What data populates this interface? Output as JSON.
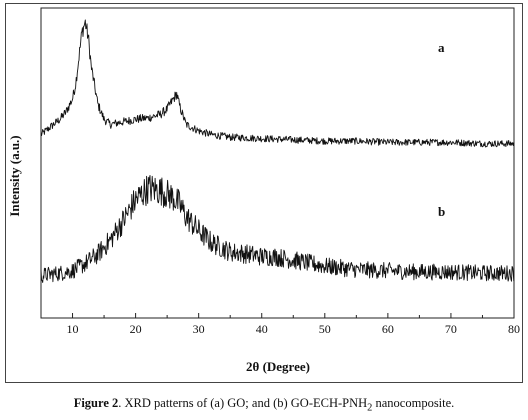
{
  "chart_data": {
    "type": "line",
    "xlabel": "2θ (Degree)",
    "ylabel": "Intensity (a.u.)",
    "xlim": [
      5,
      80
    ],
    "x_ticks": [
      10,
      20,
      30,
      40,
      50,
      60,
      70,
      80
    ],
    "grid": false,
    "panels": [
      {
        "label": "a",
        "x": [
          5,
          7,
          8,
          9,
          10,
          10.5,
          11,
          11.5,
          12,
          12.5,
          13,
          14,
          15,
          16,
          18,
          20,
          22,
          24,
          25,
          26,
          26.5,
          27,
          28,
          30,
          32,
          35,
          40,
          45,
          50,
          55,
          60,
          65,
          70,
          75,
          80
        ],
        "y": [
          0.12,
          0.2,
          0.24,
          0.3,
          0.4,
          0.52,
          0.72,
          0.92,
          1.0,
          0.88,
          0.64,
          0.36,
          0.24,
          0.2,
          0.22,
          0.24,
          0.25,
          0.28,
          0.32,
          0.4,
          0.44,
          0.34,
          0.2,
          0.15,
          0.12,
          0.1,
          0.09,
          0.08,
          0.07,
          0.07,
          0.06,
          0.06,
          0.06,
          0.05,
          0.05
        ],
        "noise": 0.04
      },
      {
        "label": "b",
        "x": [
          5,
          8,
          10,
          12,
          14,
          16,
          18,
          20,
          22,
          24,
          26,
          27,
          28,
          30,
          32,
          35,
          38,
          40,
          42,
          45,
          50,
          55,
          60,
          65,
          70,
          75,
          80
        ],
        "y": [
          0.14,
          0.16,
          0.18,
          0.24,
          0.32,
          0.44,
          0.6,
          0.78,
          0.88,
          0.86,
          0.8,
          0.74,
          0.64,
          0.52,
          0.42,
          0.34,
          0.32,
          0.3,
          0.3,
          0.27,
          0.22,
          0.19,
          0.18,
          0.17,
          0.17,
          0.16,
          0.16
        ],
        "noise": 0.09
      }
    ]
  },
  "caption": {
    "label": "Figure 2",
    "text": ". XRD patterns of (a) GO; and (b) GO-ECH-PNH",
    "subscript": "2",
    "suffix": " nanocomposite."
  }
}
